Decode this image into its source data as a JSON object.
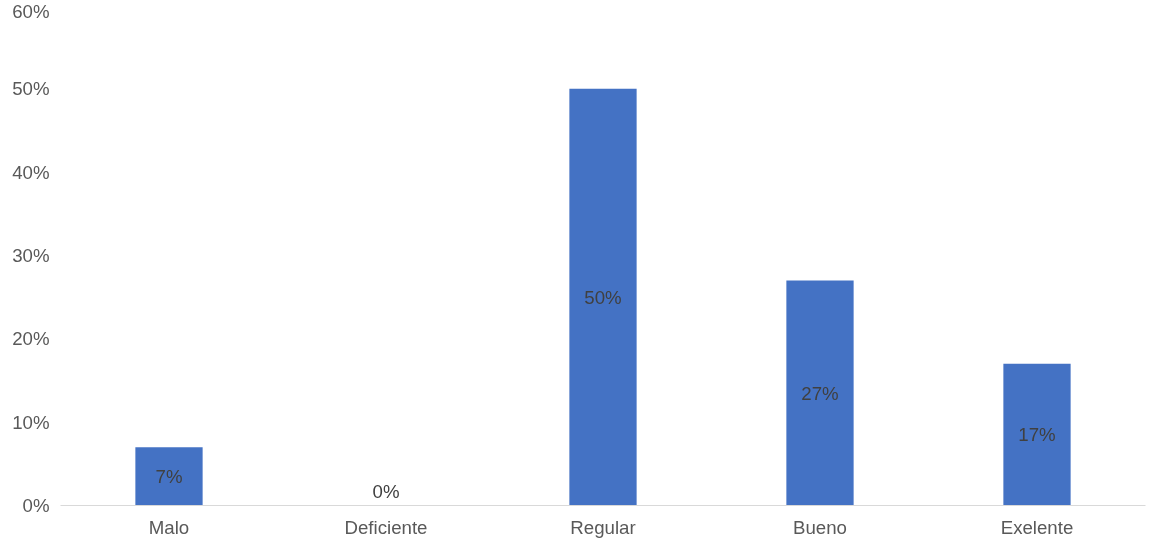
{
  "chart_data": {
    "type": "bar",
    "categories": [
      "Malo",
      "Deficiente",
      "Regular",
      "Bueno",
      "Exelente"
    ],
    "values": [
      7,
      0,
      50,
      27,
      17
    ],
    "color": "#4472c4",
    "value_labels": [
      "7%",
      "0%",
      "50%",
      "27%",
      "17%"
    ],
    "ylim": [
      0,
      60
    ],
    "yticks": [
      {
        "value": 0,
        "label": "0%"
      },
      {
        "value": 10,
        "label": "10%"
      },
      {
        "value": 20,
        "label": "20%"
      },
      {
        "value": 30,
        "label": "30%"
      },
      {
        "value": 40,
        "label": "40%"
      },
      {
        "value": 50,
        "label": "50%"
      },
      {
        "value": 60,
        "label": "60%"
      }
    ],
    "grid": false
  }
}
